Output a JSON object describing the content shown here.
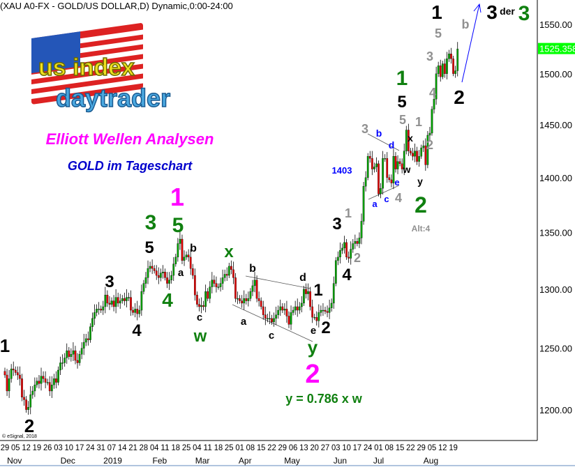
{
  "header": {
    "title": "(XAU A0-FX - GOLD/US DOLLAR,D) Dynamic,0:00-24:00"
  },
  "logo": {
    "text_top": "us index",
    "text_bottom": "daytrader"
  },
  "headline": {
    "line1": "Elliott Wellen Analysen",
    "line2": "GOLD im Tageschart"
  },
  "copyright": "© eSignal, 2018",
  "colors": {
    "up": "#00a000",
    "down": "#e00000",
    "magenta": "#ff00ff",
    "green": "#108010",
    "blue": "#0000ff",
    "gray": "#909090",
    "last_price_bg": "#00ff00"
  },
  "chart_data": {
    "type": "candlestick",
    "instrument": "XAU A0-FX - GOLD/US DOLLAR",
    "interval": "D",
    "y_scale": "log",
    "ylim": [
      1180,
      1580
    ],
    "y_ticks": [
      1550,
      1500,
      1450,
      1400,
      1350,
      1300,
      1250,
      1200
    ],
    "y_tick_labels": [
      "1550.00",
      "1500.00",
      "1450.00",
      "1400.00",
      "1350.00",
      "1300.00",
      "1250.00",
      "1200.00"
    ],
    "last_price": "1525.358",
    "x_tick_labels": [
      "29",
      "05",
      "12",
      "19",
      "26",
      "03",
      "10",
      "17",
      "24",
      "31",
      "07",
      "14",
      "21",
      "28",
      "04",
      "11",
      "18",
      "25",
      "04",
      "11",
      "18",
      "25",
      "01",
      "08",
      "15",
      "22",
      "29",
      "06",
      "13",
      "20",
      "27",
      "03",
      "10",
      "17",
      "24",
      "01",
      "08",
      "15",
      "22",
      "29",
      "05",
      "12",
      "19"
    ],
    "months": [
      {
        "label": "Nov",
        "week": 0.9
      },
      {
        "label": "Dec",
        "week": 5.9
      },
      {
        "label": "2019",
        "week": 10.1
      },
      {
        "label": "Feb",
        "week": 14.5
      },
      {
        "label": "Mar",
        "week": 18.5
      },
      {
        "label": "Apr",
        "week": 22.5
      },
      {
        "label": "May",
        "week": 26.9
      },
      {
        "label": "Jun",
        "week": 31.4
      },
      {
        "label": "Jul",
        "week": 35.0
      },
      {
        "label": "Aug",
        "week": 39.9
      }
    ],
    "closes": [
      1228,
      1215,
      1225,
      1233,
      1232,
      1230,
      1228,
      1225,
      1210,
      1208,
      1200,
      1202,
      1212,
      1215,
      1220,
      1223,
      1221,
      1227,
      1225,
      1222,
      1222,
      1215,
      1220,
      1225,
      1222,
      1232,
      1238,
      1238,
      1242,
      1248,
      1243,
      1245,
      1248,
      1240,
      1238,
      1245,
      1250,
      1255,
      1258,
      1257,
      1268,
      1275,
      1280,
      1283,
      1283,
      1282,
      1285,
      1295,
      1288,
      1287,
      1290,
      1285,
      1293,
      1288,
      1290,
      1292,
      1290,
      1293,
      1293,
      1282,
      1280,
      1283,
      1279,
      1282,
      1298,
      1305,
      1310,
      1318,
      1320,
      1318,
      1316,
      1312,
      1310,
      1314,
      1315,
      1310,
      1305,
      1308,
      1312,
      1322,
      1328,
      1340,
      1344,
      1325,
      1328,
      1330,
      1328,
      1318,
      1312,
      1295,
      1287,
      1285,
      1286,
      1285,
      1298,
      1292,
      1302,
      1308,
      1305,
      1302,
      1302,
      1305,
      1310,
      1313,
      1312,
      1320,
      1317,
      1310,
      1292,
      1292,
      1290,
      1288,
      1292,
      1290,
      1292,
      1298,
      1303,
      1308,
      1292,
      1290,
      1285,
      1278,
      1275,
      1275,
      1275,
      1272,
      1275,
      1278,
      1282,
      1285,
      1282,
      1283,
      1277,
      1270,
      1280,
      1282,
      1285,
      1282,
      1285,
      1288,
      1300,
      1296,
      1298,
      1285,
      1276,
      1276,
      1273,
      1280,
      1282,
      1282,
      1281,
      1280,
      1284,
      1288,
      1305,
      1325,
      1328,
      1334,
      1336,
      1341,
      1328,
      1327,
      1335,
      1340,
      1342,
      1340,
      1345,
      1360,
      1392,
      1400,
      1420,
      1418,
      1408,
      1410,
      1413,
      1385,
      1390,
      1418,
      1418,
      1400,
      1398,
      1395,
      1420,
      1408,
      1415,
      1413,
      1408,
      1425,
      1445,
      1425,
      1423,
      1420,
      1425,
      1415,
      1420,
      1428,
      1430,
      1412,
      1440,
      1442,
      1465,
      1475,
      1500,
      1508,
      1497,
      1510,
      1500,
      1515,
      1520,
      1515,
      1500,
      1503,
      1525
    ],
    "wave_labels": [
      {
        "text": "1",
        "color": "black"
      },
      {
        "text": "2",
        "color": "black"
      },
      {
        "text": "3",
        "color": "black"
      },
      {
        "text": "4",
        "color": "black"
      },
      {
        "text": "5",
        "color": "black"
      },
      {
        "text": "3",
        "color": "green"
      },
      {
        "text": "4",
        "color": "green"
      },
      {
        "text": "a",
        "color": "black"
      },
      {
        "text": "b",
        "color": "black"
      },
      {
        "text": "1",
        "color": "magenta"
      },
      {
        "text": "5",
        "color": "green"
      },
      {
        "text": "c",
        "color": "black"
      },
      {
        "text": "w",
        "color": "green"
      },
      {
        "text": "x",
        "color": "green"
      },
      {
        "text": "b",
        "color": "black"
      },
      {
        "text": "a",
        "color": "black"
      },
      {
        "text": "c",
        "color": "black"
      },
      {
        "text": "d",
        "color": "black"
      },
      {
        "text": "1",
        "color": "black"
      },
      {
        "text": "e",
        "color": "black"
      },
      {
        "text": "y",
        "color": "green"
      },
      {
        "text": "2",
        "color": "black"
      },
      {
        "text": "2",
        "color": "magenta"
      },
      {
        "text": "3",
        "color": "black"
      },
      {
        "text": "1",
        "color": "gray"
      },
      {
        "text": "2",
        "color": "gray"
      },
      {
        "text": "4",
        "color": "black"
      },
      {
        "text": "3",
        "color": "gray"
      },
      {
        "text": "b",
        "color": "blue"
      },
      {
        "text": "d",
        "color": "blue"
      },
      {
        "text": "1403",
        "color": "blue"
      },
      {
        "text": "a",
        "color": "blue"
      },
      {
        "text": "c",
        "color": "blue"
      },
      {
        "text": "e",
        "color": "blue"
      },
      {
        "text": "4",
        "color": "gray"
      },
      {
        "text": "1",
        "color": "green"
      },
      {
        "text": "5",
        "color": "black"
      },
      {
        "text": "5",
        "color": "gray"
      },
      {
        "text": "x",
        "color": "black"
      },
      {
        "text": "w",
        "color": "black"
      },
      {
        "text": "y",
        "color": "black"
      },
      {
        "text": "2",
        "color": "green"
      },
      {
        "text": "Alt:4",
        "color": "gray"
      },
      {
        "text": "1",
        "color": "gray"
      },
      {
        "text": "2",
        "color": "gray"
      },
      {
        "text": "3",
        "color": "gray"
      },
      {
        "text": "4",
        "color": "gray"
      },
      {
        "text": "1",
        "color": "black"
      },
      {
        "text": "5",
        "color": "gray"
      },
      {
        "text": "2",
        "color": "black"
      },
      {
        "text": "b",
        "color": "gray"
      },
      {
        "text": "3",
        "color": "black"
      },
      {
        "text": "der",
        "color": "black"
      },
      {
        "text": "3",
        "color": "green"
      }
    ],
    "annotation": "y = 0.786 x w"
  }
}
